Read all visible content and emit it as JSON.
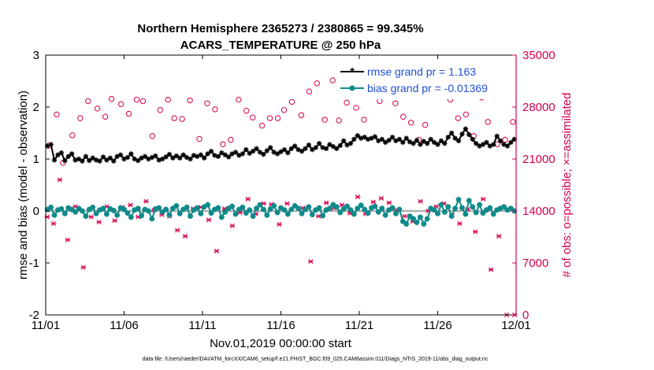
{
  "chart_data": {
    "type": "line",
    "title_line1": "Northern Hemisphere 2365273 / 2380865 = 99.345%",
    "title_line2": "ACARS_TEMPERATURE @ 250 hPa",
    "xlabel": "Nov.01,2019 00:00:00 start",
    "ylabel_left": "rmse and bias (model - observation)",
    "ylabel_right": "# of obs: o=possible; ×=assimilated",
    "footer": "data file: /Users/raeder/DAI/ATM_forcXX/CAM6_setup/f.e21.FHIST_BGC.f09_025.CAM6assim.011/Diags_NTrS_2019-11/obs_diag_output.nc",
    "xlim": [
      0,
      30
    ],
    "ylim_left": [
      -2,
      3
    ],
    "ylim_right": [
      0,
      35000
    ],
    "x_ticks": [
      0,
      5,
      10,
      15,
      20,
      25,
      30
    ],
    "x_tick_labels": [
      "11/01",
      "11/06",
      "11/11",
      "11/16",
      "11/21",
      "11/26",
      "12/01"
    ],
    "y_left_ticks": [
      "3",
      "2",
      "1",
      "0",
      "-1",
      "-2"
    ],
    "y_left_tick_values": [
      3,
      2,
      1,
      0,
      -1,
      -2
    ],
    "y_right_ticks": [
      "35000",
      "28000",
      "21000",
      "14000",
      "7000",
      "0"
    ],
    "y_right_tick_values": [
      35000,
      28000,
      21000,
      14000,
      7000,
      0
    ],
    "colors": {
      "rmse": "#000000",
      "bias": "#0f8a8a",
      "obs": "#d6004f",
      "right_axis": "#d6004f",
      "legend_text": "#1f4fd6",
      "zero_line": "#b0b0b0"
    },
    "series": [
      {
        "name": "rmse grand pr = 1.163",
        "values": [
          1.25,
          1.28,
          0.98,
          1.08,
          1.12,
          0.97,
          1.05,
          1.1,
          0.98,
          1.0,
          0.96,
          1.05,
          0.97,
          1.02,
          0.98,
          0.96,
          1.04,
          0.98,
          1.02,
          0.96,
          1.05,
          1.08,
          1.0,
          1.03,
          1.1,
          1.0,
          0.97,
          1.02,
          1.05,
          1.0,
          1.03,
          1.06,
          0.98,
          1.0,
          1.04,
          1.09,
          1.02,
          1.06,
          1.02,
          1.08,
          1.03,
          1.0,
          1.07,
          1.05,
          1.08,
          1.02,
          1.1,
          1.15,
          1.07,
          1.05,
          1.12,
          1.08,
          1.04,
          1.1,
          1.13,
          1.07,
          1.1,
          1.18,
          1.11,
          1.15,
          1.2,
          1.13,
          1.09,
          1.16,
          1.22,
          1.13,
          1.1,
          1.14,
          1.18,
          1.12,
          1.2,
          1.25,
          1.18,
          1.15,
          1.2,
          1.27,
          1.18,
          1.22,
          1.3,
          1.22,
          1.2,
          1.28,
          1.24,
          1.2,
          1.26,
          1.35,
          1.27,
          1.3,
          1.38,
          1.45,
          1.4,
          1.42,
          1.38,
          1.4,
          1.43,
          1.35,
          1.38,
          1.32,
          1.36,
          1.42,
          1.35,
          1.38,
          1.32,
          1.4,
          1.33,
          1.3,
          1.36,
          1.28,
          1.34,
          1.3,
          1.38,
          1.32,
          1.28,
          1.35,
          1.3,
          1.42,
          1.5,
          1.4,
          1.35,
          1.48,
          1.58,
          1.47,
          1.38,
          1.3,
          1.25,
          1.28,
          1.32,
          1.25,
          1.28,
          1.44,
          1.35,
          1.28,
          1.25,
          1.32,
          1.38
        ]
      },
      {
        "name": "bias grand pr = -0.01369",
        "values": [
          0.03,
          0.07,
          -0.08,
          0.02,
          0.04,
          -0.05,
          0.06,
          0.03,
          -0.02,
          0.05,
          0.0,
          -0.1,
          0.03,
          0.07,
          -0.05,
          0.02,
          0.05,
          -0.06,
          0.04,
          0.01,
          -0.08,
          0.06,
          0.03,
          -0.04,
          -0.12,
          0.02,
          0.05,
          -0.09,
          0.03,
          0.0,
          -0.15,
          0.04,
          0.06,
          -0.02,
          0.03,
          -0.08,
          0.05,
          0.1,
          -0.05,
          0.03,
          0.07,
          -0.1,
          0.02,
          0.06,
          -0.05,
          0.08,
          0.12,
          -0.04,
          0.03,
          0.06,
          -0.12,
          -0.02,
          0.05,
          0.09,
          -0.06,
          0.03,
          0.07,
          -0.04,
          0.02,
          -0.1,
          0.05,
          0.12,
          0.03,
          -0.08,
          0.04,
          0.1,
          -0.03,
          0.06,
          0.02,
          -0.06,
          0.03,
          0.1,
          0.05,
          -0.05,
          0.03,
          0.08,
          -0.07,
          0.02,
          0.06,
          -0.09,
          0.02,
          0.05,
          0.12,
          0.08,
          -0.03,
          0.04,
          0.09,
          0.02,
          -0.06,
          0.05,
          0.11,
          0.03,
          -0.04,
          0.06,
          0.09,
          -0.02,
          0.05,
          -0.08,
          0.02,
          0.06,
          -0.05,
          0.03,
          -0.2,
          -0.25,
          -0.1,
          -0.15,
          -0.22,
          -0.12,
          -0.25,
          -0.15,
          0.05,
          0.02,
          -0.05,
          0.12,
          -0.02,
          0.08,
          -0.1,
          0.05,
          0.22,
          0.06,
          -0.06,
          0.2,
          0.08,
          -0.03,
          0.12,
          -0.04,
          0.02,
          0.06,
          -0.06,
          0.02,
          0.05,
          0.08,
          0.02,
          0.05,
          0.0
        ]
      },
      {
        "name": "# of obs possible",
        "x": [
          0.2,
          0.7,
          1.1,
          1.7,
          2.2,
          2.7,
          3.3,
          3.8,
          4.2,
          4.8,
          5.3,
          5.8,
          6.2,
          6.8,
          7.3,
          7.8,
          8.2,
          8.7,
          9.2,
          9.8,
          10.3,
          10.8,
          11.3,
          11.8,
          12.3,
          12.8,
          13.2,
          13.8,
          14.3,
          14.8,
          15.2,
          15.7,
          16.3,
          16.8,
          17.3,
          17.8,
          18.3,
          18.7,
          19.2,
          19.8,
          20.3,
          20.8,
          21.3,
          21.8,
          22.3,
          22.8,
          23.3,
          23.8,
          24.2,
          24.8,
          25.3,
          25.8,
          26.3,
          26.8,
          27.3,
          27.8,
          28.2,
          28.8,
          29.3,
          29.8
        ],
        "values": [
          22800,
          27000,
          20500,
          24200,
          26500,
          28800,
          27800,
          26700,
          29100,
          28400,
          27100,
          29000,
          28800,
          24100,
          27600,
          29000,
          26500,
          26400,
          28900,
          23700,
          28500,
          27700,
          23000,
          23600,
          29000,
          27500,
          26600,
          25500,
          26500,
          26500,
          27600,
          28700,
          26900,
          30100,
          31200,
          26300,
          31600,
          26200,
          28600,
          27900,
          26300,
          31100,
          28800,
          32100,
          28500,
          26700,
          25900,
          23600,
          25600,
          29900,
          31700,
          29000,
          26500,
          27000,
          24100,
          29300,
          26000,
          23000,
          23600,
          26000
        ]
      },
      {
        "name": "# of obs assimilated",
        "x": [
          0.1,
          0.5,
          0.9,
          1.4,
          1.9,
          2.4,
          2.9,
          3.4,
          3.9,
          4.4,
          4.9,
          5.4,
          5.9,
          6.4,
          6.9,
          7.4,
          7.9,
          8.4,
          8.9,
          9.4,
          9.9,
          10.4,
          10.9,
          11.4,
          11.9,
          12.4,
          12.9,
          13.4,
          13.9,
          14.4,
          14.9,
          15.4,
          15.9,
          16.4,
          16.9,
          17.4,
          17.9,
          18.4,
          18.9,
          19.4,
          19.9,
          20.4,
          20.9,
          21.4,
          21.9,
          22.4,
          22.9,
          23.4,
          23.9,
          24.4,
          24.9,
          25.4,
          25.9,
          26.4,
          26.9,
          27.4,
          27.9,
          28.4,
          28.9,
          29.4,
          29.9
        ],
        "values": [
          13200,
          12300,
          18200,
          10100,
          14600,
          6400,
          13200,
          12500,
          14600,
          12700,
          14500,
          14800,
          13200,
          15300,
          14100,
          13500,
          13300,
          11400,
          10600,
          14300,
          14500,
          12800,
          8600,
          14300,
          12000,
          13800,
          15600,
          13600,
          15000,
          14900,
          12200,
          15000,
          14600,
          14400,
          7200,
          13300,
          15100,
          14400,
          14800,
          13700,
          15900,
          13600,
          15200,
          15700,
          15100,
          14100,
          13300,
          12600,
          15300,
          14000,
          14600,
          15000,
          13600,
          12300,
          14200,
          11200,
          15600,
          6100,
          10600,
          0,
          0
        ]
      }
    ]
  }
}
